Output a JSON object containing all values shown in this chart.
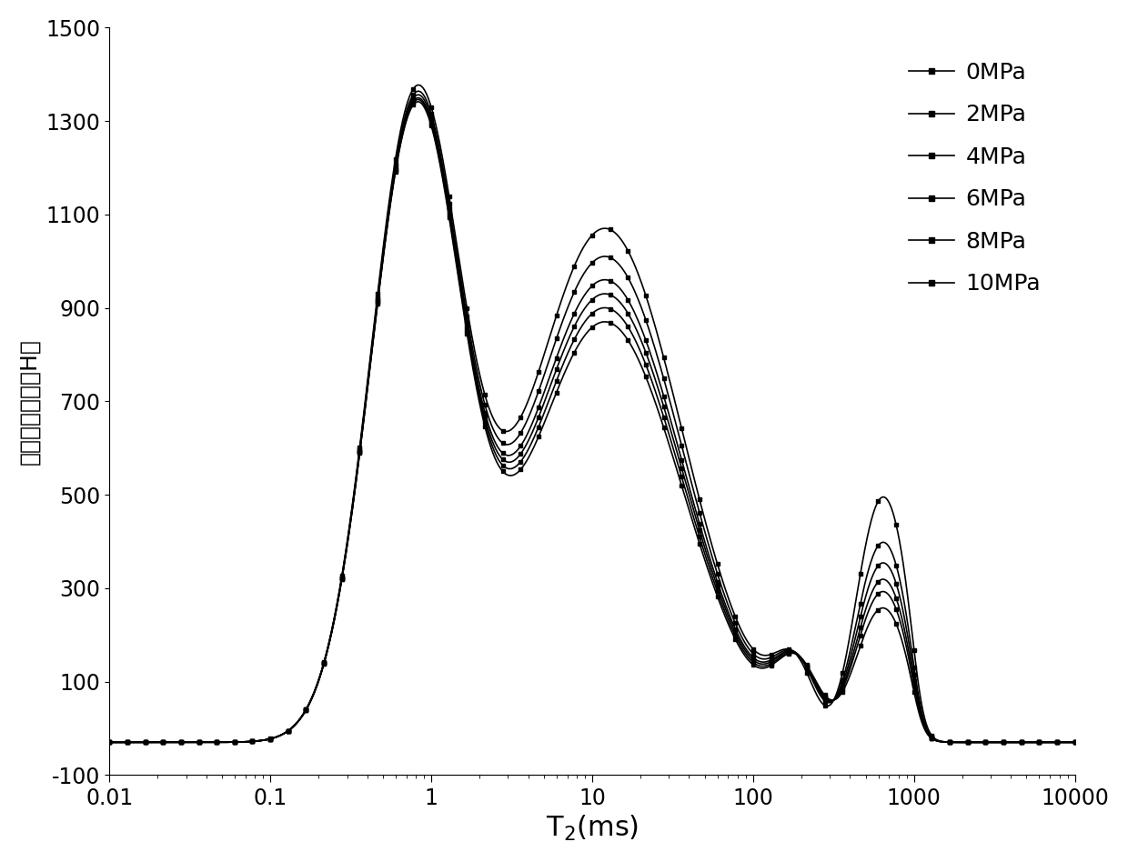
{
  "ylabel": "核磁信号强度（H）",
  "xlabel": "T$_2$(ms)",
  "ylim": [
    -100,
    1500
  ],
  "xlim": [
    0.01,
    10000
  ],
  "yticks": [
    -100,
    100,
    300,
    500,
    700,
    900,
    1100,
    1300,
    1500
  ],
  "xtick_labels": [
    "0.01",
    "0.1",
    "1",
    "10",
    "100",
    "1000",
    "10000"
  ],
  "series": [
    {
      "label": "0MPa",
      "p1": 1350,
      "p2": 1100,
      "p3": 590,
      "p4": 220,
      "trough": 80
    },
    {
      "label": "2MPa",
      "p1": 1340,
      "p2": 1040,
      "p3": 480,
      "p4": 210,
      "trough": 80
    },
    {
      "label": "4MPa",
      "p1": 1335,
      "p2": 990,
      "p3": 430,
      "p4": 205,
      "trough": 80
    },
    {
      "label": "6MPa",
      "p1": 1330,
      "p2": 960,
      "p3": 390,
      "p4": 200,
      "trough": 80
    },
    {
      "label": "8MPa",
      "p1": 1328,
      "p2": 930,
      "p3": 360,
      "p4": 195,
      "trough": 80
    },
    {
      "label": "10MPa",
      "p1": 1325,
      "p2": 900,
      "p3": 320,
      "p4": 190,
      "trough": 80
    }
  ],
  "line_color": "#000000",
  "marker": "s",
  "markersize": 3,
  "linewidth": 1.2,
  "legend_fontsize": 18,
  "xlabel_fontsize": 22,
  "ylabel_fontsize": 18,
  "tick_fontsize": 17,
  "baseline": -30
}
